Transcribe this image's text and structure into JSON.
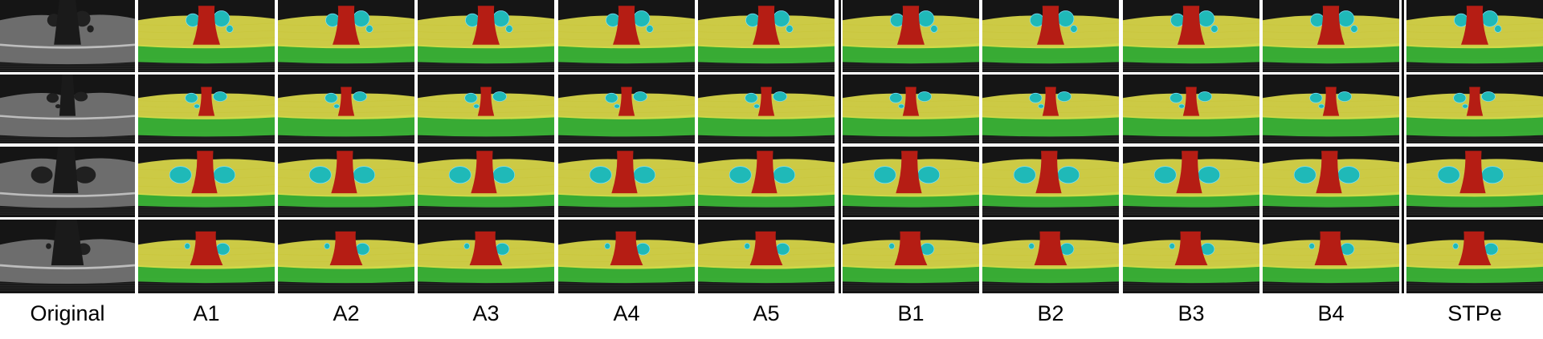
{
  "columns": [
    {
      "label": "Original",
      "kind": "original"
    },
    {
      "label": "A1",
      "kind": "segmented"
    },
    {
      "label": "A2",
      "kind": "segmented"
    },
    {
      "label": "A3",
      "kind": "segmented"
    },
    {
      "label": "A4",
      "kind": "segmented"
    },
    {
      "label": "A5",
      "kind": "segmented"
    },
    {
      "label": "B1",
      "kind": "segmented"
    },
    {
      "label": "B2",
      "kind": "segmented"
    },
    {
      "label": "B3",
      "kind": "segmented"
    },
    {
      "label": "B4",
      "kind": "segmented"
    },
    {
      "label": "STPe",
      "kind": "segmented"
    }
  ],
  "rows": 4,
  "colors": {
    "background": "#151515",
    "retina_layer": "#e0de4a",
    "choroid_layer": "#3ec53a",
    "fluid_region": "#1fb9b8",
    "hole_region": "#b51d14",
    "oct_tissue": "#bdbdbd",
    "separator": "#111111"
  }
}
